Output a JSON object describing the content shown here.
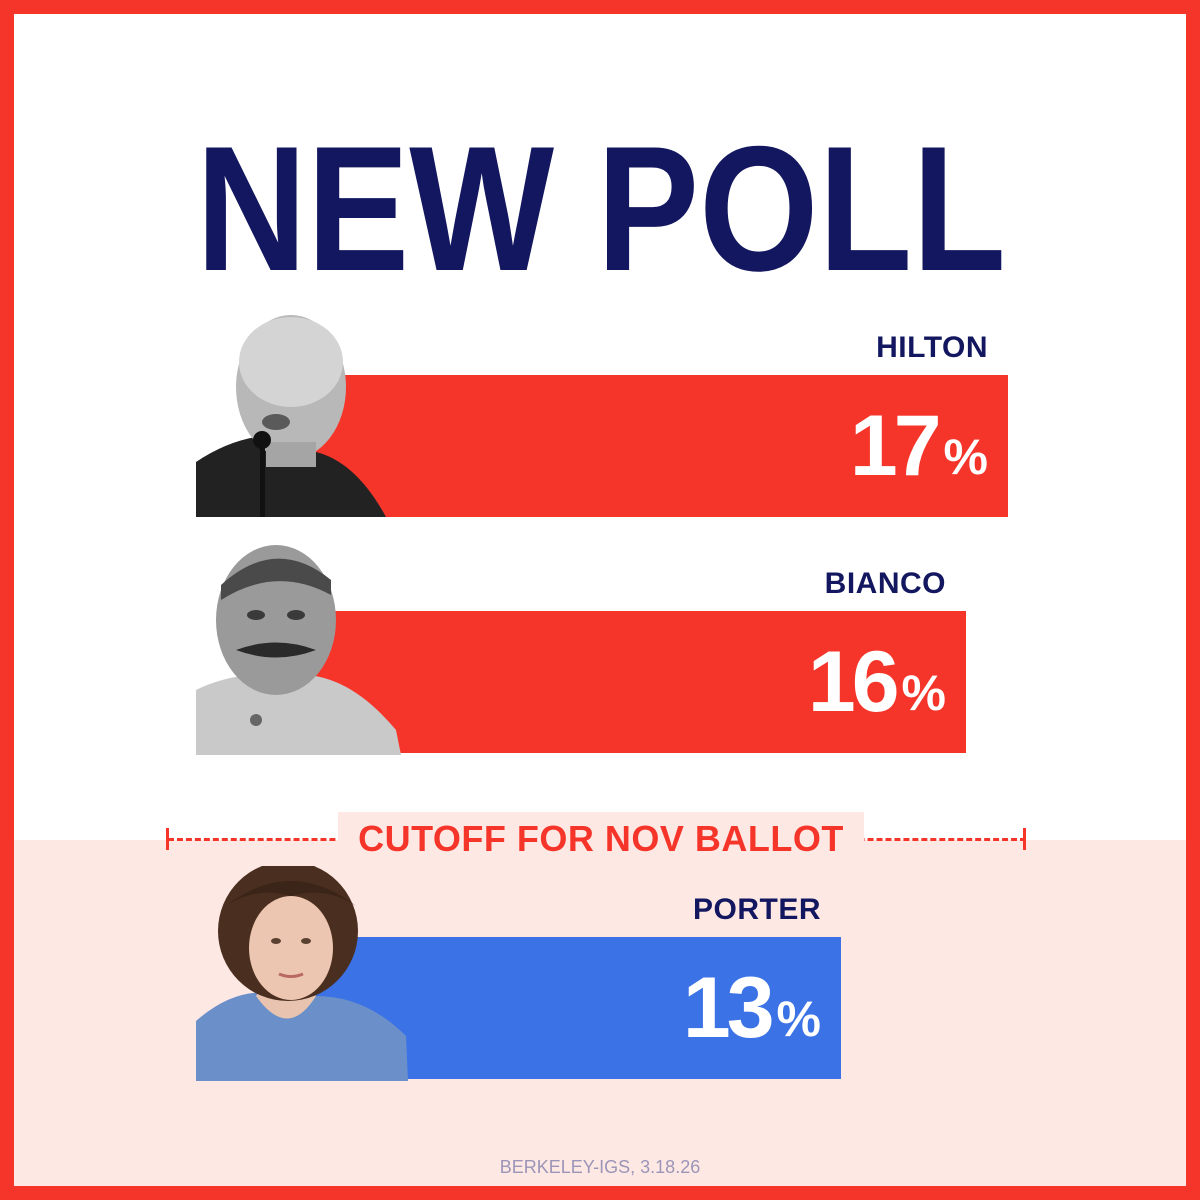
{
  "headline": "NEW POLL",
  "cutoff_label": "CUTOFF FOR NOV BALLOT",
  "source": "BERKELEY-IGS, 3.18.26",
  "colors": {
    "frame": "#f5352a",
    "headline": "#13175f",
    "republican_bar": "#f5352a",
    "democrat_bar": "#3b72e5",
    "bottom_band": "#fde8e4",
    "cutoff": "#f5352a"
  },
  "chart_data": {
    "type": "bar",
    "orientation": "horizontal",
    "title": "NEW POLL",
    "unit": "%",
    "categories": [
      "HILTON",
      "BIANCO",
      "PORTER"
    ],
    "values": [
      17,
      16,
      13
    ],
    "value_labels": [
      {
        "num": "17",
        "suffix": "%"
      },
      {
        "num": "16",
        "suffix": "%"
      },
      {
        "num": "13",
        "suffix": "%"
      }
    ],
    "bar_colors": [
      "#f5352a",
      "#f5352a",
      "#3b72e5"
    ],
    "photo_icons": [
      "hilton-photo",
      "bianco-photo",
      "porter-photo"
    ],
    "annotations": [
      "CUTOFF FOR NOV BALLOT"
    ],
    "xlim": [
      0,
      17
    ]
  }
}
